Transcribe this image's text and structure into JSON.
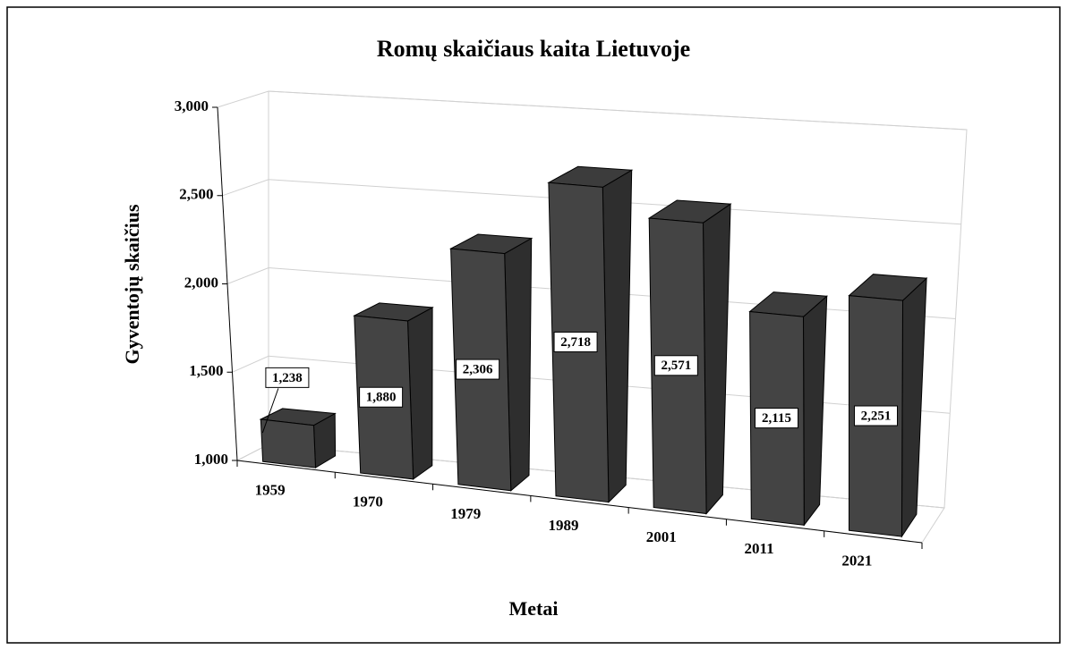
{
  "chart_data": {
    "type": "bar3d",
    "title": "Romų skaičiaus kaita Lietuvoje",
    "xlabel": "Metai",
    "ylabel": "Gyventojų skaičius",
    "categories": [
      "1959",
      "1970",
      "1979",
      "1989",
      "2001",
      "2011",
      "2021"
    ],
    "values": [
      1238,
      1880,
      2306,
      2718,
      2571,
      2115,
      2251
    ],
    "value_labels": [
      "1,238",
      "1,880",
      "2,306",
      "2,718",
      "2,571",
      "2,115",
      "2,251"
    ],
    "color": "#444444",
    "ylim": [
      1000,
      3000
    ],
    "yticks": [
      {
        "value": 1000,
        "label": "1,000"
      },
      {
        "value": 1500,
        "label": "1,500"
      },
      {
        "value": 2000,
        "label": "2,000"
      },
      {
        "value": 2500,
        "label": "2,500"
      },
      {
        "value": 3000,
        "label": "3,000"
      }
    ],
    "grid": true
  }
}
